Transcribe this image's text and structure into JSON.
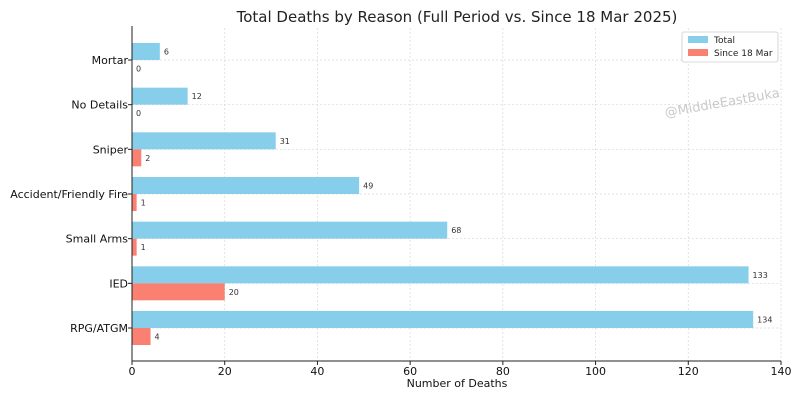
{
  "chart_data": {
    "type": "bar",
    "orientation": "horizontal",
    "title": "Total Deaths by Reason (Full Period vs. Since 18 Mar 2025)",
    "xlabel": "Number of Deaths",
    "ylabel": "",
    "xlim": [
      0,
      140
    ],
    "xticks": [
      0,
      20,
      40,
      60,
      80,
      100,
      120,
      140
    ],
    "categories": [
      "Mortar",
      "No Details",
      "Sniper",
      "Accident/Friendly Fire",
      "Small Arms",
      "IED",
      "RPG/ATGM"
    ],
    "series": [
      {
        "name": "Total",
        "values": [
          6,
          12,
          31,
          49,
          68,
          133,
          134
        ],
        "color": "#87ceeb"
      },
      {
        "name": "Since 18 Mar",
        "values": [
          0,
          0,
          2,
          1,
          1,
          20,
          4
        ],
        "color": "#fa8072"
      }
    ],
    "grid": true,
    "legend_position": "top-right"
  },
  "watermark": "@MiddleEastBuka"
}
